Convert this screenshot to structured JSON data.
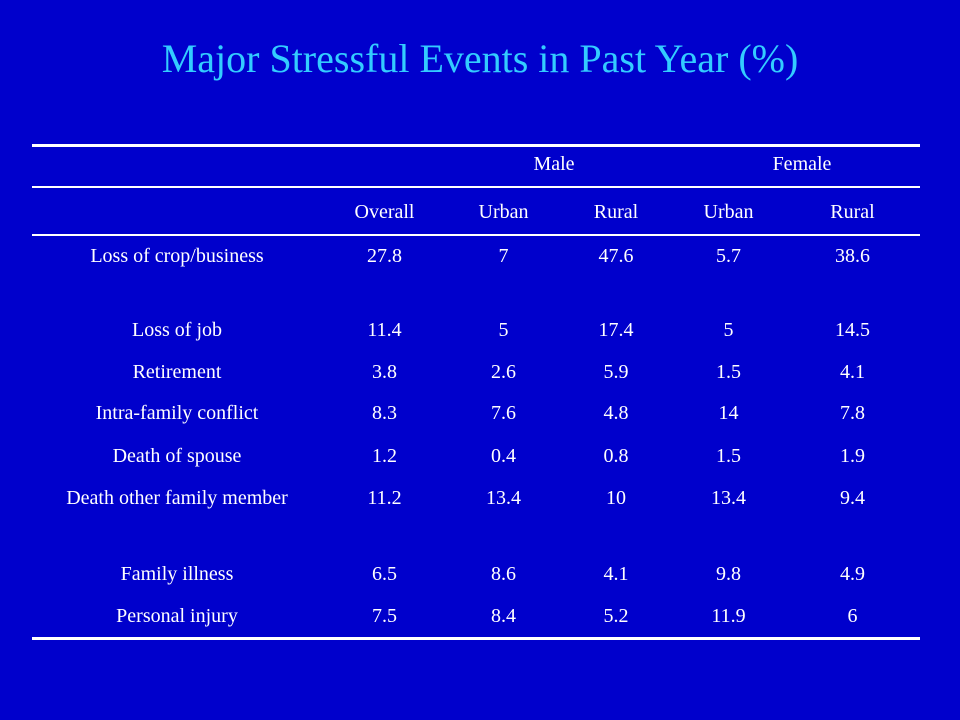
{
  "title": "Major Stressful Events in Past Year (%)",
  "table": {
    "group_headers": [
      "Male",
      "Female"
    ],
    "column_headers": [
      "Overall",
      "Urban",
      "Rural",
      "Urban",
      "Rural"
    ],
    "rows": [
      {
        "label": "Loss of crop/business",
        "values": [
          "27.8",
          "7",
          "47.6",
          "5.7",
          "38.6"
        ]
      },
      {
        "label": "Loss of job",
        "values": [
          "11.4",
          "5",
          "17.4",
          "5",
          "14.5"
        ]
      },
      {
        "label": "Retirement",
        "values": [
          "3.8",
          "2.6",
          "5.9",
          "1.5",
          "4.1"
        ]
      },
      {
        "label": "Intra-family conflict",
        "values": [
          "8.3",
          "7.6",
          "4.8",
          "14",
          "7.8"
        ]
      },
      {
        "label": "Death of spouse",
        "values": [
          "1.2",
          "0.4",
          "0.8",
          "1.5",
          "1.9"
        ]
      },
      {
        "label": "Death other family member",
        "values": [
          "11.2",
          "13.4",
          "10",
          "13.4",
          "9.4"
        ]
      },
      {
        "label": "Family illness",
        "values": [
          "6.5",
          "8.6",
          "4.1",
          "9.8",
          "4.9"
        ]
      },
      {
        "label": "Personal injury",
        "values": [
          "7.5",
          "8.4",
          "5.2",
          "11.9",
          "6"
        ]
      }
    ]
  },
  "colors": {
    "background": "#0000cc",
    "title": "#33ccff",
    "text": "#ffffff"
  }
}
